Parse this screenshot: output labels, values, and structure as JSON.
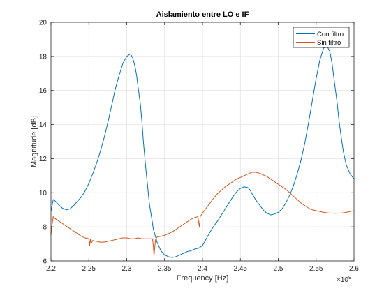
{
  "chart_data": {
    "type": "line",
    "title": "Aislamiento entre LO e IF",
    "xlabel": "Frequency [Hz]",
    "ylabel": "Magnitude [dB]",
    "x_exponent_label": "×10",
    "x_exponent_power": "9",
    "xlim": [
      2.2,
      2.6
    ],
    "ylim": [
      6,
      20
    ],
    "x_ticks": [
      2.2,
      2.25,
      2.3,
      2.35,
      2.4,
      2.45,
      2.5,
      2.55,
      2.6
    ],
    "x_tick_labels": [
      "2.2",
      "2.25",
      "2.3",
      "2.35",
      "2.4",
      "2.45",
      "2.5",
      "2.55",
      "2.6"
    ],
    "y_ticks": [
      6,
      8,
      10,
      12,
      14,
      16,
      18,
      20
    ],
    "y_tick_labels": [
      "6",
      "8",
      "10",
      "12",
      "14",
      "16",
      "18",
      "20"
    ],
    "grid": true,
    "legend_position": "top-right",
    "series": [
      {
        "name": "Con filtro",
        "color": "#0072BD",
        "x": [
          2.2,
          2.203,
          2.206,
          2.21,
          2.215,
          2.22,
          2.225,
          2.23,
          2.235,
          2.24,
          2.245,
          2.25,
          2.255,
          2.26,
          2.265,
          2.27,
          2.275,
          2.28,
          2.285,
          2.29,
          2.295,
          2.3,
          2.305,
          2.308,
          2.311,
          2.313,
          2.315,
          2.318,
          2.32,
          2.322,
          2.325,
          2.328,
          2.33,
          2.333,
          2.335,
          2.34,
          2.345,
          2.35,
          2.355,
          2.36,
          2.365,
          2.37,
          2.375,
          2.38,
          2.385,
          2.39,
          2.395,
          2.4,
          2.405,
          2.41,
          2.415,
          2.42,
          2.425,
          2.43,
          2.435,
          2.44,
          2.445,
          2.45,
          2.455,
          2.46,
          2.463,
          2.466,
          2.47,
          2.475,
          2.48,
          2.485,
          2.49,
          2.495,
          2.5,
          2.505,
          2.51,
          2.515,
          2.52,
          2.525,
          2.53,
          2.535,
          2.54,
          2.545,
          2.55,
          2.555,
          2.56,
          2.565,
          2.568,
          2.571,
          2.573,
          2.575,
          2.578,
          2.58,
          2.583,
          2.586,
          2.59,
          2.595,
          2.6
        ],
        "y": [
          8.9,
          9.6,
          9.5,
          9.3,
          9.1,
          9.0,
          9.05,
          9.25,
          9.5,
          9.75,
          10.1,
          10.55,
          11.1,
          11.7,
          12.4,
          13.2,
          14.1,
          15.1,
          16.1,
          16.9,
          17.6,
          18.0,
          18.15,
          17.9,
          17.4,
          16.9,
          16.2,
          15.2,
          14.2,
          13.0,
          11.5,
          10.2,
          9.3,
          8.5,
          7.9,
          7.1,
          6.6,
          6.35,
          6.25,
          6.2,
          6.25,
          6.35,
          6.45,
          6.55,
          6.6,
          6.7,
          6.75,
          6.9,
          7.3,
          7.7,
          8.05,
          8.35,
          8.7,
          9.05,
          9.4,
          9.75,
          10.05,
          10.25,
          10.35,
          10.3,
          10.15,
          9.9,
          9.6,
          9.3,
          9.0,
          8.8,
          8.7,
          8.75,
          8.85,
          9.05,
          9.4,
          9.85,
          10.4,
          11.1,
          11.9,
          12.9,
          14.1,
          15.4,
          16.7,
          17.8,
          18.5,
          18.55,
          18.3,
          17.6,
          16.9,
          16.2,
          15.2,
          14.3,
          13.3,
          12.4,
          11.6,
          11.1,
          10.8
        ]
      },
      {
        "name": "Sin filtro",
        "color": "#D95319",
        "x": [
          2.2,
          2.201,
          2.203,
          2.205,
          2.21,
          2.215,
          2.22,
          2.225,
          2.23,
          2.235,
          2.24,
          2.245,
          2.25,
          2.251,
          2.252,
          2.253,
          2.255,
          2.26,
          2.265,
          2.27,
          2.275,
          2.28,
          2.285,
          2.29,
          2.295,
          2.3,
          2.305,
          2.31,
          2.315,
          2.32,
          2.325,
          2.33,
          2.334,
          2.335,
          2.336,
          2.337,
          2.338,
          2.34,
          2.345,
          2.35,
          2.355,
          2.36,
          2.365,
          2.37,
          2.375,
          2.38,
          2.385,
          2.39,
          2.394,
          2.395,
          2.396,
          2.397,
          2.4,
          2.405,
          2.41,
          2.415,
          2.42,
          2.425,
          2.43,
          2.435,
          2.44,
          2.445,
          2.45,
          2.455,
          2.46,
          2.465,
          2.47,
          2.475,
          2.48,
          2.485,
          2.49,
          2.495,
          2.5,
          2.505,
          2.51,
          2.515,
          2.52,
          2.525,
          2.53,
          2.535,
          2.54,
          2.545,
          2.55,
          2.555,
          2.56,
          2.565,
          2.57,
          2.575,
          2.58,
          2.585,
          2.59,
          2.595,
          2.6
        ],
        "y": [
          7.5,
          8.0,
          8.6,
          8.5,
          8.35,
          8.2,
          8.05,
          7.9,
          7.75,
          7.6,
          7.45,
          7.35,
          7.3,
          6.9,
          7.3,
          7.0,
          7.2,
          7.15,
          7.1,
          7.1,
          7.15,
          7.2,
          7.25,
          7.3,
          7.35,
          7.35,
          7.3,
          7.3,
          7.35,
          7.3,
          7.3,
          7.3,
          7.3,
          6.9,
          6.3,
          6.8,
          7.25,
          7.4,
          7.45,
          7.5,
          7.6,
          7.7,
          7.85,
          8.0,
          8.15,
          8.3,
          8.45,
          8.55,
          8.6,
          8.25,
          8.0,
          8.6,
          8.8,
          9.1,
          9.4,
          9.7,
          9.95,
          10.15,
          10.35,
          10.5,
          10.65,
          10.8,
          10.9,
          11.0,
          11.1,
          11.2,
          11.2,
          11.15,
          11.05,
          10.95,
          10.8,
          10.65,
          10.5,
          10.35,
          10.2,
          10.0,
          9.8,
          9.6,
          9.4,
          9.25,
          9.1,
          9.0,
          8.95,
          8.9,
          8.85,
          8.82,
          8.8,
          8.8,
          8.8,
          8.82,
          8.85,
          8.9,
          8.95
        ]
      }
    ]
  }
}
